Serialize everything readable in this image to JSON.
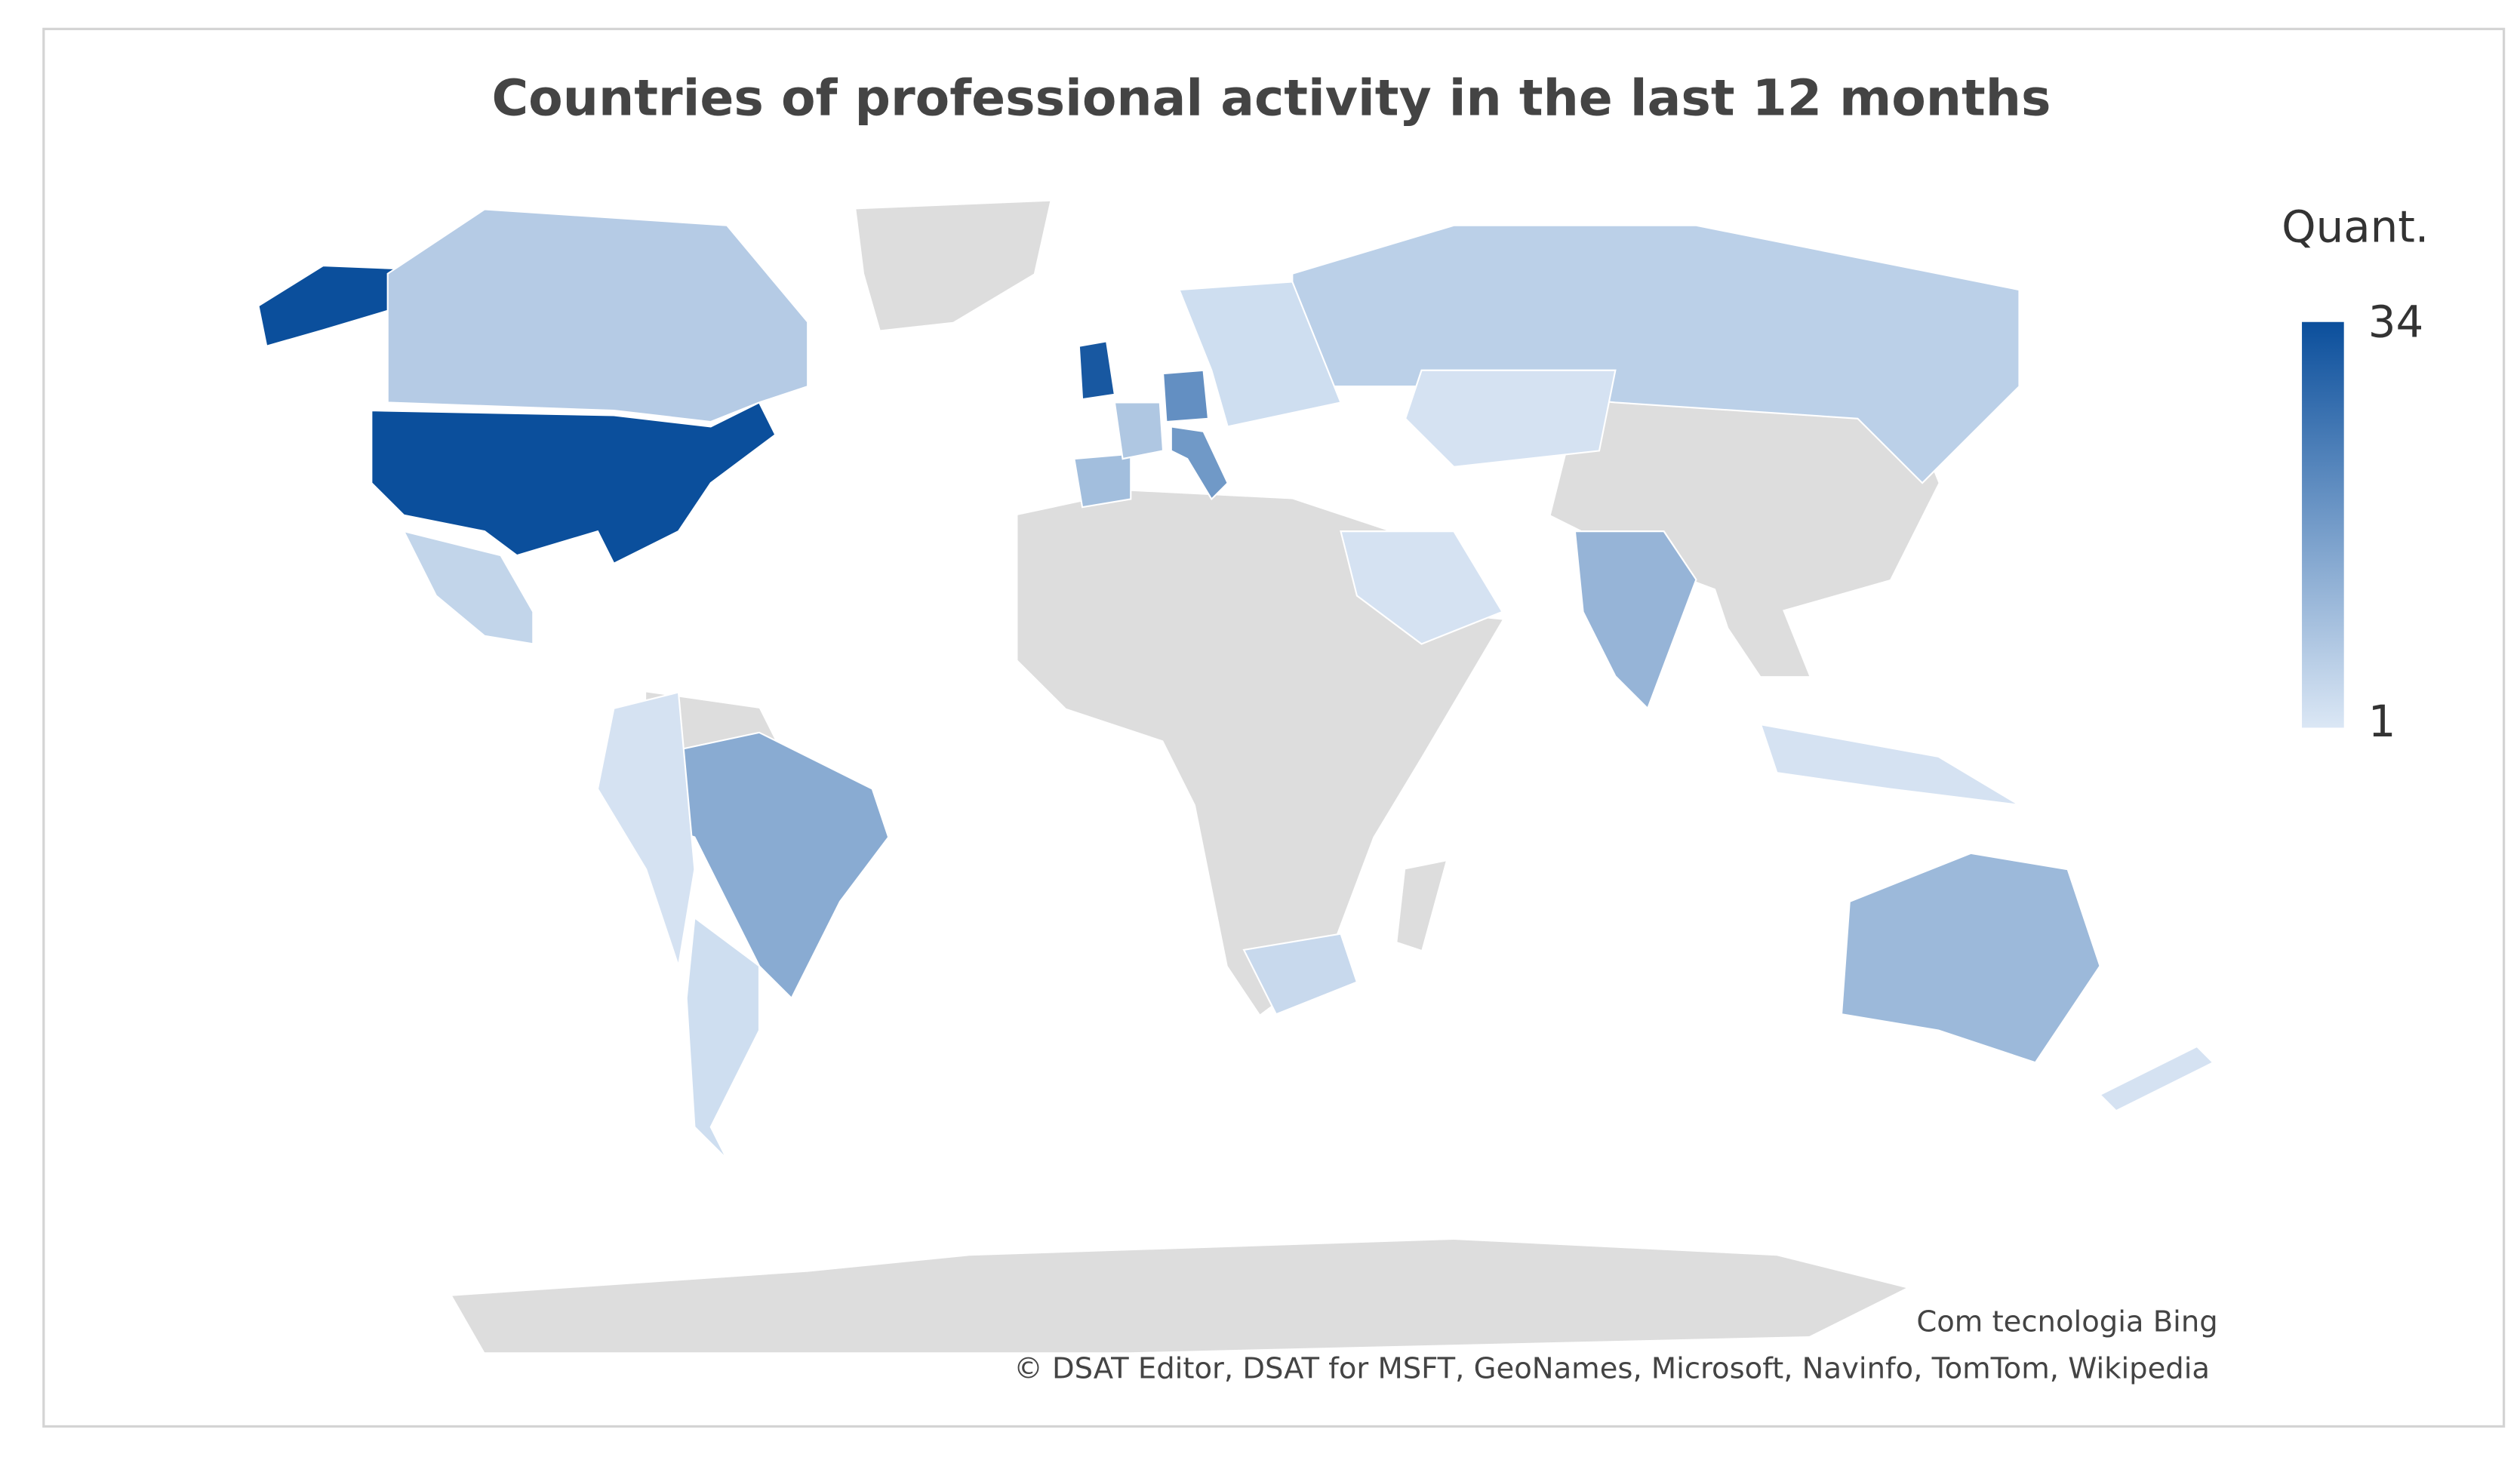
{
  "chart_data": {
    "type": "map",
    "title": "Countries of professional activity in the last 12 months",
    "legend_title": "Quant.",
    "colorlim": [
      1,
      34
    ],
    "colorticks": [
      1,
      34
    ],
    "colors": [
      "#dbe7f5",
      "#0b4f9c"
    ],
    "no_data_color": "#dddddd",
    "values": [
      34,
      32,
      20,
      18,
      14,
      12,
      11,
      7,
      6,
      10,
      8,
      5,
      3,
      4,
      2,
      2,
      3,
      2,
      2,
      2
    ],
    "credits": [
      "Com tecnologia Bing",
      "© DSAT Editor, DSAT for MSFT, GeoNames, Microsoft, Navinfo, TomTom, Wikipedia"
    ]
  }
}
